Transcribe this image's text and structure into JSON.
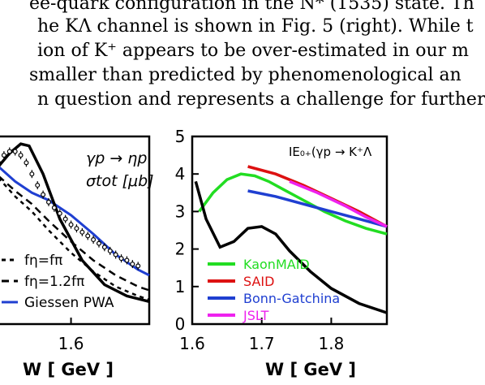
{
  "paper_text": {
    "line1": "ee-quark configuration in the N* (1535) state. Th",
    "line2": "he KΛ channel is shown in Fig. 5 (right). While t",
    "line3": "ion of K⁺ appears to be over-estimated in our m",
    "line4": "smaller than predicted by phenomenological an",
    "line5": "n question and represents a challenge for further"
  },
  "colors": {
    "black": "#000000",
    "blue": "#1f3fd1",
    "green": "#22dd22",
    "red": "#dd1111",
    "magenta": "#ee22ee"
  },
  "chart_data": [
    {
      "type": "line",
      "title": "γp → ηp",
      "subtitle": "σtot [μb]",
      "xlabel": "W [ GeV ]",
      "ylabel": "",
      "xlim": [
        1.47,
        1.74
      ],
      "ylim": [
        0,
        5
      ],
      "xticks": [
        {
          "value": 1.6,
          "label": "1.6"
        }
      ],
      "legend_position": "bottom-left",
      "series": [
        {
          "name": "fη=fπ",
          "style": "dashed-short",
          "color": "#000000",
          "x": [
            1.47,
            1.5,
            1.53,
            1.56,
            1.6,
            1.64,
            1.68,
            1.72,
            1.74
          ],
          "y": [
            3.9,
            3.4,
            3.0,
            2.5,
            1.9,
            1.4,
            1.0,
            0.75,
            0.65
          ]
        },
        {
          "name": "fη=1.2fπ",
          "style": "dashed",
          "color": "#000000",
          "x": [
            1.47,
            1.5,
            1.53,
            1.56,
            1.6,
            1.64,
            1.68,
            1.72,
            1.74
          ],
          "y": [
            3.95,
            3.55,
            3.2,
            2.75,
            2.2,
            1.7,
            1.3,
            1.0,
            0.9
          ]
        },
        {
          "name": "Giessen PWA",
          "style": "solid",
          "color": "#1f3fd1",
          "x": [
            1.47,
            1.5,
            1.53,
            1.56,
            1.6,
            1.64,
            1.68,
            1.72,
            1.74
          ],
          "y": [
            4.2,
            3.8,
            3.5,
            3.3,
            2.9,
            2.4,
            1.85,
            1.45,
            1.3
          ]
        },
        {
          "name": "",
          "style": "solid-thick",
          "color": "#000000",
          "x": [
            1.47,
            1.49,
            1.51,
            1.525,
            1.55,
            1.58,
            1.62,
            1.66,
            1.7,
            1.74
          ],
          "y": [
            4.2,
            4.55,
            4.8,
            4.75,
            4.0,
            2.8,
            1.7,
            1.05,
            0.75,
            0.6
          ]
        },
        {
          "name": "",
          "style": "points",
          "color": "#000000",
          "x": [
            1.47,
            1.48,
            1.49,
            1.5,
            1.51,
            1.52,
            1.53,
            1.54,
            1.55,
            1.56,
            1.57,
            1.58,
            1.59,
            1.6,
            1.61,
            1.62,
            1.63,
            1.64,
            1.65,
            1.66,
            1.67,
            1.68,
            1.69,
            1.7,
            1.71,
            1.72
          ],
          "y": [
            4.3,
            4.5,
            4.6,
            4.6,
            4.5,
            4.3,
            4.0,
            3.7,
            3.45,
            3.25,
            3.1,
            2.95,
            2.8,
            2.65,
            2.55,
            2.45,
            2.35,
            2.25,
            2.15,
            2.05,
            1.95,
            1.85,
            1.75,
            1.7,
            1.6,
            1.55
          ]
        }
      ]
    },
    {
      "type": "line",
      "title": "IE₀₊(γp → K⁺Λ",
      "xlabel": "W [ GeV ]",
      "ylabel": "",
      "xlim": [
        1.6,
        1.88
      ],
      "ylim": [
        0,
        5
      ],
      "xticks": [
        {
          "value": 1.6,
          "label": "1.6"
        },
        {
          "value": 1.7,
          "label": "1.7"
        },
        {
          "value": 1.8,
          "label": "1.8"
        }
      ],
      "yticks": [
        {
          "value": 0,
          "label": "0"
        },
        {
          "value": 1,
          "label": "1"
        },
        {
          "value": 2,
          "label": "2"
        },
        {
          "value": 3,
          "label": "3"
        },
        {
          "value": 4,
          "label": "4"
        },
        {
          "value": 5,
          "label": "5"
        }
      ],
      "legend_position": "bottom-left",
      "series": [
        {
          "name": "KaonMAID",
          "color": "#22dd22",
          "x": [
            1.61,
            1.63,
            1.65,
            1.67,
            1.69,
            1.71,
            1.73,
            1.76,
            1.79,
            1.82,
            1.85,
            1.88
          ],
          "y": [
            3.0,
            3.5,
            3.85,
            4.0,
            3.95,
            3.8,
            3.6,
            3.3,
            3.0,
            2.75,
            2.55,
            2.4
          ]
        },
        {
          "name": "SAID",
          "color": "#dd1111",
          "x": [
            1.68,
            1.72,
            1.76,
            1.8,
            1.84,
            1.88
          ],
          "y": [
            4.2,
            4.0,
            3.7,
            3.35,
            3.0,
            2.6
          ]
        },
        {
          "name": "Bonn-Gatchina",
          "color": "#1f3fd1",
          "x": [
            1.68,
            1.72,
            1.76,
            1.8,
            1.84,
            1.88
          ],
          "y": [
            3.55,
            3.4,
            3.2,
            3.0,
            2.8,
            2.6
          ]
        },
        {
          "name": "JSLT",
          "color": "#ee22ee",
          "x": [
            1.74,
            1.78,
            1.82,
            1.85,
            1.88
          ],
          "y": [
            3.8,
            3.5,
            3.15,
            2.85,
            2.6
          ]
        },
        {
          "name": "",
          "color": "#000000",
          "x": [
            1.605,
            1.62,
            1.64,
            1.66,
            1.68,
            1.7,
            1.72,
            1.74,
            1.77,
            1.8,
            1.84,
            1.88
          ],
          "y": [
            3.8,
            2.8,
            2.05,
            2.2,
            2.55,
            2.6,
            2.4,
            1.95,
            1.4,
            0.95,
            0.55,
            0.3
          ]
        }
      ]
    }
  ]
}
